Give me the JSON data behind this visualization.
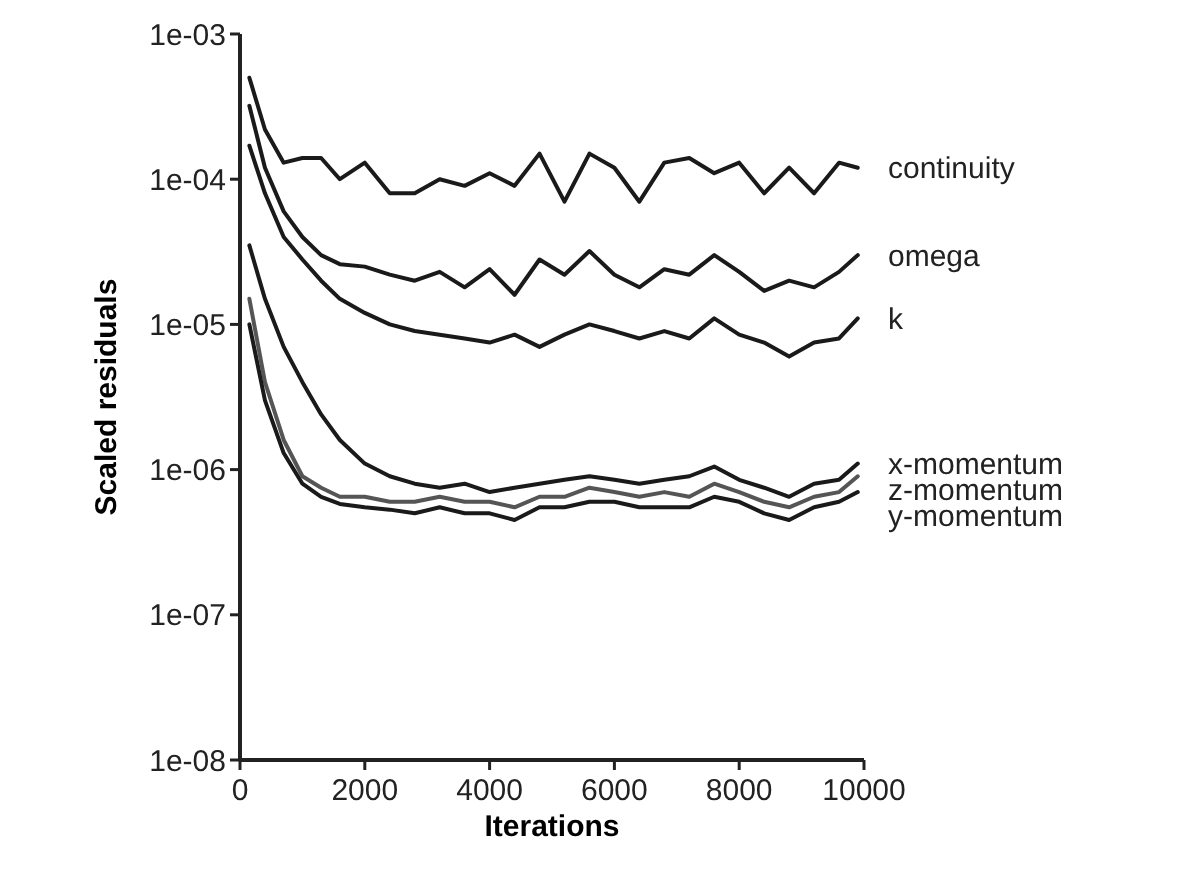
{
  "chart_data": {
    "type": "line",
    "xlabel": "Iterations",
    "ylabel": "Scaled residuals",
    "log": "y",
    "xlim": [
      0,
      10000
    ],
    "xticks": [
      0,
      2000,
      4000,
      6000,
      8000,
      10000
    ],
    "ylim": [
      1e-08,
      0.001
    ],
    "yticks": [
      {
        "value": 1e-08,
        "label": "1e-08"
      },
      {
        "value": 1e-07,
        "label": "1e-07"
      },
      {
        "value": 1e-06,
        "label": "1e-06"
      },
      {
        "value": 1e-05,
        "label": "1e-05"
      },
      {
        "value": 0.0001,
        "label": "1e-04"
      },
      {
        "value": 0.001,
        "label": "1e-03"
      }
    ],
    "grid": false,
    "marker": "none",
    "line_style": "solid",
    "x": [
      150,
      400,
      700,
      1000,
      1300,
      1600,
      2000,
      2400,
      2800,
      3200,
      3600,
      4000,
      4400,
      4800,
      5200,
      5600,
      6000,
      6400,
      6800,
      7200,
      7600,
      8000,
      8400,
      8800,
      9200,
      9600,
      9900
    ],
    "series": [
      {
        "name": "continuity",
        "color": "#1a1a1a",
        "values": [
          0.0005,
          0.00022,
          0.00013,
          0.00014,
          0.00014,
          0.0001,
          0.00013,
          8e-05,
          8e-05,
          0.0001,
          9e-05,
          0.00011,
          9e-05,
          0.00015,
          7e-05,
          0.00015,
          0.00012,
          7e-05,
          0.00013,
          0.00014,
          0.00011,
          0.00013,
          8e-05,
          0.00012,
          8e-05,
          0.00013,
          0.00012
        ]
      },
      {
        "name": "omega",
        "color": "#1a1a1a",
        "values": [
          0.00032,
          0.00012,
          6e-05,
          4e-05,
          3e-05,
          2.6e-05,
          2.5e-05,
          2.2e-05,
          2e-05,
          2.3e-05,
          1.8e-05,
          2.4e-05,
          1.6e-05,
          2.8e-05,
          2.2e-05,
          3.2e-05,
          2.2e-05,
          1.8e-05,
          2.4e-05,
          2.2e-05,
          3e-05,
          2.3e-05,
          1.7e-05,
          2e-05,
          1.8e-05,
          2.3e-05,
          3e-05
        ]
      },
      {
        "name": "k",
        "color": "#1a1a1a",
        "values": [
          0.00017,
          8e-05,
          4e-05,
          2.8e-05,
          2e-05,
          1.5e-05,
          1.2e-05,
          1e-05,
          9e-06,
          8.5e-06,
          8e-06,
          7.5e-06,
          8.5e-06,
          7e-06,
          8.5e-06,
          1e-05,
          9e-06,
          8e-06,
          9e-06,
          8e-06,
          1.1e-05,
          8.5e-06,
          7.5e-06,
          6e-06,
          7.5e-06,
          8e-06,
          1.1e-05
        ]
      },
      {
        "name": "x-momentum",
        "color": "#1a1a1a",
        "values": [
          3.5e-05,
          1.5e-05,
          7e-06,
          4e-06,
          2.4e-06,
          1.6e-06,
          1.1e-06,
          9e-07,
          8e-07,
          7.5e-07,
          8e-07,
          7e-07,
          7.5e-07,
          8e-07,
          8.5e-07,
          9e-07,
          8.5e-07,
          8e-07,
          8.5e-07,
          9e-07,
          1.05e-06,
          8.5e-07,
          7.5e-07,
          6.5e-07,
          8e-07,
          8.5e-07,
          1.1e-06
        ]
      },
      {
        "name": "z-momentum",
        "color": "#555555",
        "values": [
          1.5e-05,
          4e-06,
          1.6e-06,
          9e-07,
          7.5e-07,
          6.5e-07,
          6.5e-07,
          6e-07,
          6e-07,
          6.5e-07,
          6e-07,
          6e-07,
          5.5e-07,
          6.5e-07,
          6.5e-07,
          7.5e-07,
          7e-07,
          6.5e-07,
          7e-07,
          6.5e-07,
          8e-07,
          7e-07,
          6e-07,
          5.5e-07,
          6.5e-07,
          7e-07,
          9e-07
        ]
      },
      {
        "name": "y-momentum",
        "color": "#1a1a1a",
        "values": [
          1e-05,
          3e-06,
          1.3e-06,
          8e-07,
          6.5e-07,
          5.8e-07,
          5.5e-07,
          5.3e-07,
          5e-07,
          5.5e-07,
          5e-07,
          5e-07,
          4.5e-07,
          5.5e-07,
          5.5e-07,
          6e-07,
          6e-07,
          5.5e-07,
          5.5e-07,
          5.5e-07,
          6.5e-07,
          6e-07,
          5e-07,
          4.5e-07,
          5.5e-07,
          6e-07,
          7e-07
        ]
      }
    ]
  }
}
